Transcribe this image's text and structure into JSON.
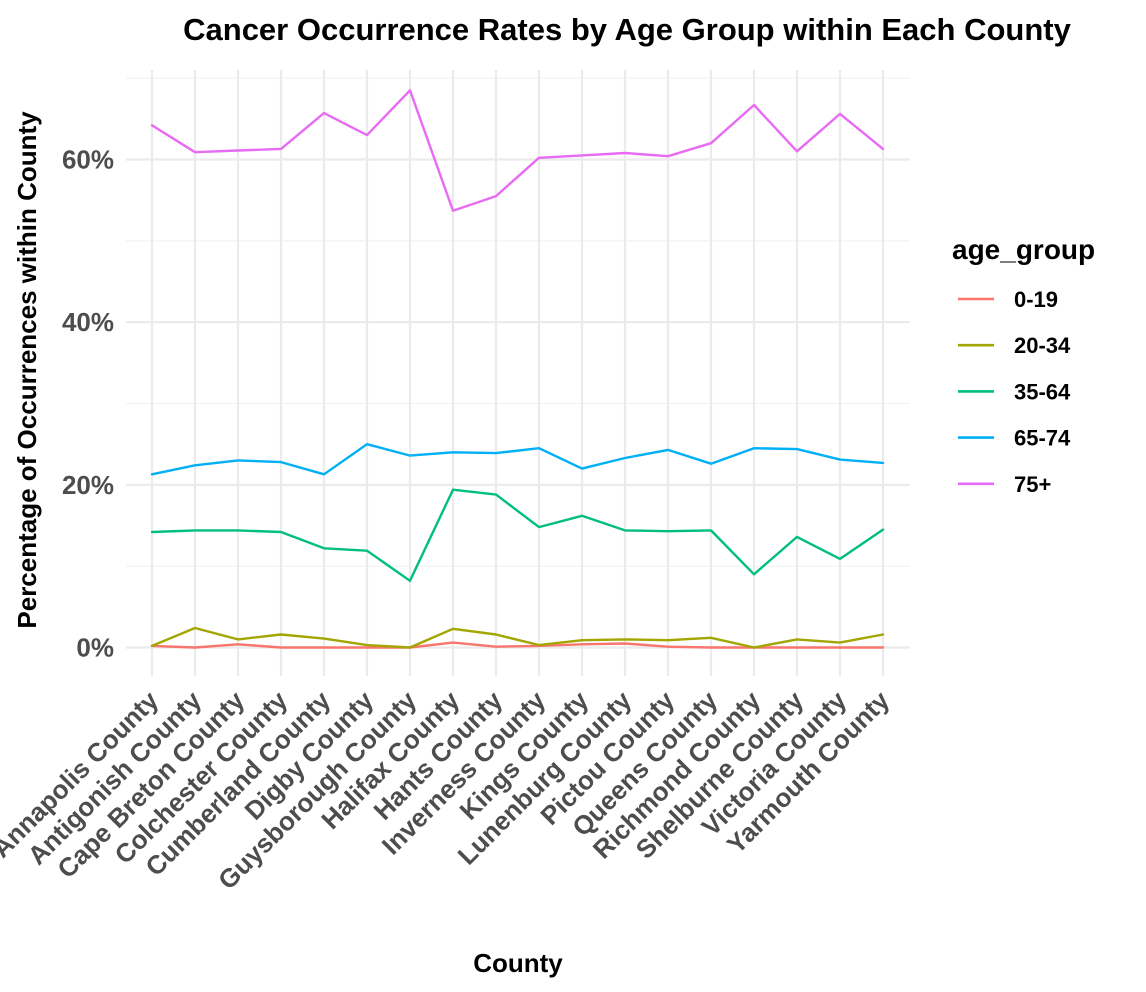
{
  "chart_data": {
    "type": "line",
    "title": "Cancer Occurrence Rates by Age Group within Each County",
    "xlabel": "County",
    "ylabel": "Percentage of Occurrences within County",
    "x_tick_labels": [
      "Annapolis County",
      "Antigonish County",
      "Cape Breton County",
      "Colchester County",
      "Cumberland County",
      "Digby County",
      "Guysborough County",
      "Halifax County",
      "Hants County",
      "Inverness County",
      "Kings County",
      "Lunenburg County",
      "Pictou County",
      "Queens County",
      "Richmond County",
      "Shelburne County",
      "Victoria County",
      "Yarmouth County"
    ],
    "categories": [
      "Annapolis County",
      "Antigonish County",
      "Cape Breton County",
      "Colchester County",
      "Cumberland County",
      "Digby County",
      "Guysborough County",
      "Halifax County",
      "Hants County",
      "Inverness County",
      "Kings County",
      "Lunenburg County",
      "Pictou County",
      "Queens County",
      "Richmond County",
      "Shelburne County",
      "Victoria County",
      "Yarmouth County"
    ],
    "y_ticks": [
      0,
      20,
      40,
      60
    ],
    "y_tick_labels": [
      "0%",
      "20%",
      "40%",
      "60%"
    ],
    "ylim": [
      -3.5,
      71
    ],
    "grid": true,
    "legend": {
      "title": "age_group",
      "position": "right"
    },
    "series": [
      {
        "name": "0-19",
        "color": "#F8766D",
        "values": [
          0.2,
          0.0,
          0.4,
          0.0,
          0.0,
          0.0,
          0.0,
          0.6,
          0.1,
          0.2,
          0.4,
          0.5,
          0.1,
          0.0,
          0.0,
          0.0,
          0.0,
          0.0
        ]
      },
      {
        "name": "20-34",
        "color": "#A3A500",
        "values": [
          0.2,
          2.4,
          1.0,
          1.6,
          1.1,
          0.3,
          0.0,
          2.3,
          1.6,
          0.3,
          0.9,
          1.0,
          0.9,
          1.2,
          0.0,
          1.0,
          0.6,
          1.6
        ]
      },
      {
        "name": "35-64",
        "color": "#00BF7D",
        "values": [
          14.2,
          14.4,
          14.4,
          14.2,
          12.2,
          11.9,
          8.2,
          19.4,
          18.8,
          14.8,
          16.2,
          14.4,
          14.3,
          14.4,
          9.0,
          13.6,
          10.9,
          14.5
        ]
      },
      {
        "name": "65-74",
        "color": "#00B0F6",
        "values": [
          21.3,
          22.4,
          23.0,
          22.8,
          21.3,
          25.0,
          23.6,
          24.0,
          23.9,
          24.5,
          22.0,
          23.3,
          24.3,
          22.6,
          24.5,
          24.4,
          23.1,
          22.7
        ]
      },
      {
        "name": "75+",
        "color": "#E76BF3",
        "values": [
          64.2,
          60.9,
          61.1,
          61.3,
          65.7,
          63.0,
          68.5,
          53.7,
          55.5,
          60.2,
          60.5,
          60.8,
          60.4,
          62.0,
          66.7,
          61.0,
          65.6,
          61.3
        ]
      }
    ]
  }
}
